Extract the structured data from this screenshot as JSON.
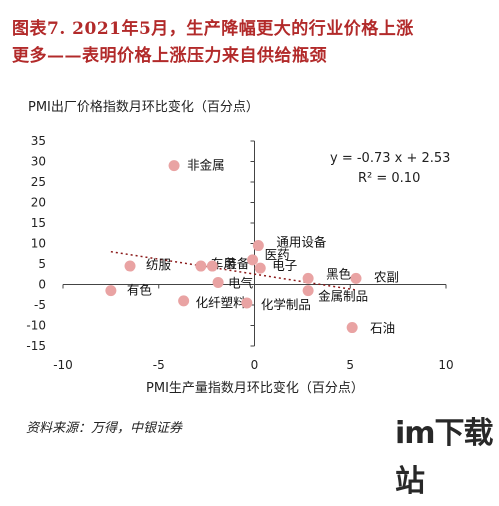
{
  "title": {
    "line1": "图表7. 2021年5月，生产降幅更大的行业价格上涨",
    "line2": "更多——表明价格上涨压力来自供给瓶颈"
  },
  "source": "资料来源：万得，中银证券",
  "watermark": "im下载站",
  "colors": {
    "title": "#b22a2a",
    "points": "#e9a3a3",
    "trendline": "#8b1a1a"
  },
  "chart_data": {
    "type": "scatter",
    "title": "",
    "xlabel": "PMI生产量指数月环比变化（百分点）",
    "ylabel": "PMI出厂价格指数月环比变化（百分点）",
    "xlim": [
      -10,
      10
    ],
    "ylim": [
      -15,
      35
    ],
    "xticks": [
      -10,
      -5,
      0,
      5,
      10
    ],
    "yticks": [
      -15,
      -10,
      -5,
      0,
      5,
      10,
      15,
      20,
      25,
      30,
      35
    ],
    "grid": false,
    "points": [
      {
        "label": "非金属",
        "x": -4.2,
        "y": 29.0
      },
      {
        "label": "纺服",
        "x": -6.5,
        "y": 4.5
      },
      {
        "label": "有色",
        "x": -7.5,
        "y": -1.5
      },
      {
        "label": "化纤塑料",
        "x": -3.7,
        "y": -4.0
      },
      {
        "label": "车用",
        "x": -2.8,
        "y": 4.5
      },
      {
        "label": "装备",
        "x": -2.2,
        "y": 4.5
      },
      {
        "label": "电气",
        "x": -1.9,
        "y": 0.5
      },
      {
        "label": "通用设备",
        "x": 0.2,
        "y": 9.5
      },
      {
        "label": "医药",
        "x": -0.1,
        "y": 6.0
      },
      {
        "label": "电子",
        "x": 0.3,
        "y": 4.0
      },
      {
        "label": "黑色",
        "x": 2.8,
        "y": 1.5
      },
      {
        "label": "金属制品",
        "x": 2.8,
        "y": -1.5
      },
      {
        "label": "农副",
        "x": 5.3,
        "y": 1.5
      },
      {
        "label": "化学制品",
        "x": -0.4,
        "y": -4.5
      },
      {
        "label": "石油",
        "x": 5.1,
        "y": -10.5
      }
    ],
    "trendline": {
      "slope": -0.73,
      "intercept": 2.53,
      "x_range": [
        -7.5,
        5.3
      ]
    },
    "equation": "y = -0.73 x + 2.53",
    "r_squared": "R² = 0.10"
  }
}
